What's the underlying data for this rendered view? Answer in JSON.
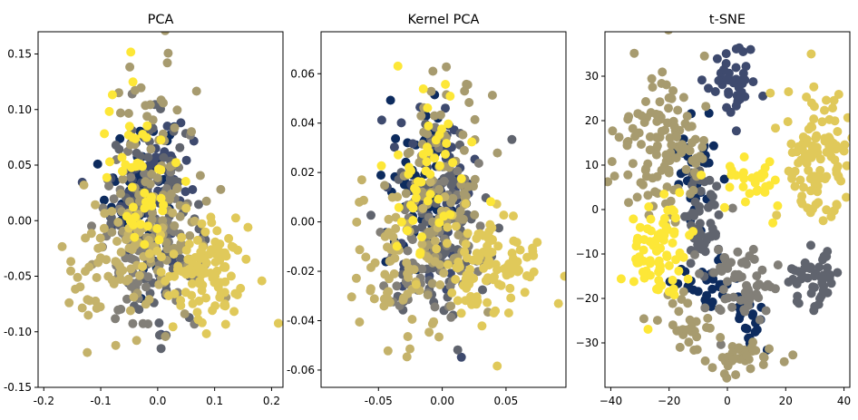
{
  "colormap": "cividis",
  "chart_data": [
    {
      "type": "scatter",
      "title": "PCA",
      "xlabel": "",
      "ylabel": "",
      "xlim": [
        -0.21,
        0.22
      ],
      "ylim": [
        -0.15,
        0.17
      ],
      "xticks": [
        -0.2,
        -0.1,
        0.0,
        0.1,
        0.2
      ],
      "xtick_labels": [
        "-0.2",
        "-0.1",
        "0.0",
        "0.1",
        "0.2"
      ],
      "yticks": [
        -0.15,
        -0.1,
        -0.05,
        0.0,
        0.05,
        0.1,
        0.15
      ],
      "ytick_labels": [
        "-0.15",
        "-0.10",
        "-0.05",
        "0.00",
        "0.05",
        "0.10",
        "0.15"
      ],
      "grid": false,
      "clusters": [
        {
          "color": "#0d2b5e",
          "center": [
            -0.03,
            0.03
          ],
          "spread": [
            0.03,
            0.035
          ],
          "n": 70
        },
        {
          "color": "#3e4a6e",
          "center": [
            -0.01,
            0.02
          ],
          "spread": [
            0.035,
            0.04
          ],
          "n": 70
        },
        {
          "color": "#60646e",
          "center": [
            0.0,
            0.0
          ],
          "spread": [
            0.04,
            0.045
          ],
          "n": 80
        },
        {
          "color": "#827f78",
          "center": [
            -0.02,
            -0.02
          ],
          "spread": [
            0.045,
            0.045
          ],
          "n": 80
        },
        {
          "color": "#a79b6f",
          "center": [
            0.0,
            0.03
          ],
          "spread": [
            0.04,
            0.055
          ],
          "n": 90
        },
        {
          "color": "#c4b26a",
          "center": [
            -0.07,
            -0.04
          ],
          "spread": [
            0.05,
            0.035
          ],
          "n": 80
        },
        {
          "color": "#e0c95a",
          "center": [
            0.08,
            -0.04
          ],
          "spread": [
            0.045,
            0.025
          ],
          "n": 110
        },
        {
          "color": "#fde737",
          "center": [
            -0.03,
            0.04
          ],
          "spread": [
            0.03,
            0.04
          ],
          "n": 50
        }
      ]
    },
    {
      "type": "scatter",
      "title": "Kernel PCA",
      "xlabel": "",
      "ylabel": "",
      "xlim": [
        -0.095,
        0.097
      ],
      "ylim": [
        -0.067,
        0.077
      ],
      "xticks": [
        -0.05,
        0.0,
        0.05
      ],
      "xtick_labels": [
        "-0.05",
        "0.00",
        "0.05"
      ],
      "yticks": [
        -0.06,
        -0.04,
        -0.02,
        0.0,
        0.02,
        0.04,
        0.06
      ],
      "ytick_labels": [
        "-0.06",
        "-0.04",
        "-0.02",
        "0.00",
        "0.02",
        "0.04",
        "0.06"
      ],
      "grid": false,
      "clusters": [
        {
          "color": "#0d2b5e",
          "center": [
            -0.014,
            0.014
          ],
          "spread": [
            0.014,
            0.016
          ],
          "n": 70
        },
        {
          "color": "#3e4a6e",
          "center": [
            -0.005,
            0.009
          ],
          "spread": [
            0.016,
            0.018
          ],
          "n": 70
        },
        {
          "color": "#60646e",
          "center": [
            0.0,
            0.0
          ],
          "spread": [
            0.018,
            0.02
          ],
          "n": 80
        },
        {
          "color": "#827f78",
          "center": [
            -0.009,
            -0.009
          ],
          "spread": [
            0.02,
            0.02
          ],
          "n": 80
        },
        {
          "color": "#a79b6f",
          "center": [
            0.0,
            0.014
          ],
          "spread": [
            0.018,
            0.024
          ],
          "n": 90
        },
        {
          "color": "#c4b26a",
          "center": [
            -0.032,
            -0.018
          ],
          "spread": [
            0.022,
            0.016
          ],
          "n": 80
        },
        {
          "color": "#e0c95a",
          "center": [
            0.036,
            -0.018
          ],
          "spread": [
            0.02,
            0.011
          ],
          "n": 110
        },
        {
          "color": "#fde737",
          "center": [
            -0.014,
            0.018
          ],
          "spread": [
            0.014,
            0.018
          ],
          "n": 50
        }
      ]
    },
    {
      "type": "scatter",
      "title": "t-SNE",
      "xlabel": "",
      "ylabel": "",
      "xlim": [
        -42,
        42
      ],
      "ylim": [
        -40,
        40
      ],
      "xticks": [
        -40,
        -20,
        0,
        20,
        40
      ],
      "xtick_labels": [
        "−40",
        "−20",
        "0",
        "20",
        "40"
      ],
      "yticks": [
        -30,
        -20,
        -10,
        0,
        10,
        20,
        30
      ],
      "ytick_labels": [
        "−30",
        "−20",
        "−10",
        "0",
        "10",
        "20",
        "30"
      ],
      "grid": false,
      "clusters": [
        {
          "color": "#0d2b5e",
          "center": [
            -10,
            10
          ],
          "spread": [
            4,
            6
          ],
          "n": 35
        },
        {
          "color": "#0d2b5e",
          "center": [
            -8,
            -17
          ],
          "spread": [
            5,
            3
          ],
          "n": 30
        },
        {
          "color": "#0d2b5e",
          "center": [
            8,
            -27
          ],
          "spread": [
            3,
            4
          ],
          "n": 20
        },
        {
          "color": "#3e4a6e",
          "center": [
            2,
            29
          ],
          "spread": [
            4,
            3.5
          ],
          "n": 45
        },
        {
          "color": "#60646e",
          "center": [
            -8,
            -2
          ],
          "spread": [
            3.5,
            6
          ],
          "n": 50
        },
        {
          "color": "#60646e",
          "center": [
            30,
            -15
          ],
          "spread": [
            4,
            4
          ],
          "n": 45
        },
        {
          "color": "#827f78",
          "center": [
            5,
            -17
          ],
          "spread": [
            6,
            5
          ],
          "n": 60
        },
        {
          "color": "#a79b6f",
          "center": [
            -22,
            15
          ],
          "spread": [
            8,
            8
          ],
          "n": 120
        },
        {
          "color": "#a79b6f",
          "center": [
            5,
            -33
          ],
          "spread": [
            6,
            2
          ],
          "n": 40
        },
        {
          "color": "#a79b6f",
          "center": [
            -14,
            -25
          ],
          "spread": [
            5,
            3
          ],
          "n": 25
        },
        {
          "color": "#e0c95a",
          "center": [
            30,
            12
          ],
          "spread": [
            6,
            7
          ],
          "n": 110
        },
        {
          "color": "#fde737",
          "center": [
            -24,
            -10
          ],
          "spread": [
            5,
            6
          ],
          "n": 80
        },
        {
          "color": "#fde737",
          "center": [
            8,
            6
          ],
          "spread": [
            6,
            3
          ],
          "n": 30
        }
      ]
    }
  ]
}
